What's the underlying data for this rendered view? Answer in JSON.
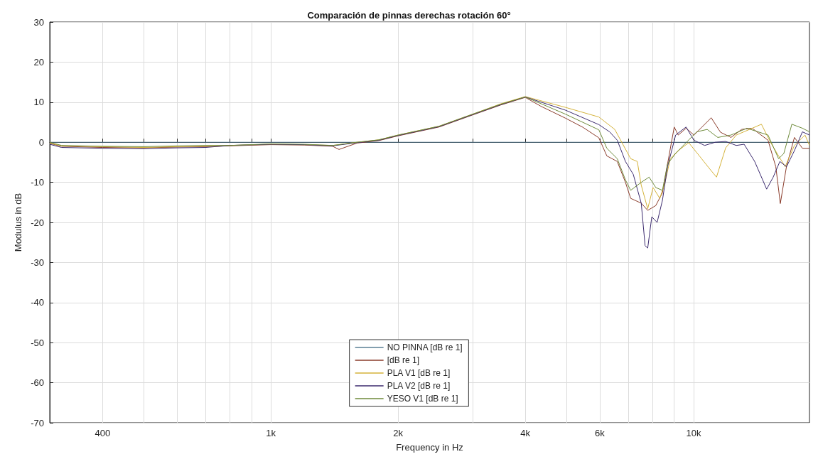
{
  "chart_data": {
    "type": "line",
    "title": "Comparación de pinnas derechas rotación 60°",
    "xlabel": "Frequency in Hz",
    "ylabel": "Modulus in dB",
    "log": "x",
    "grid": true,
    "legend": "bottom",
    "xlim": [
      300,
      18800
    ],
    "ylim": [
      -70,
      30
    ],
    "xticks": [
      400,
      {
        "value": 500,
        "label": null
      },
      {
        "value": 600,
        "label": null
      },
      {
        "value": 700,
        "label": null
      },
      {
        "value": 800,
        "label": null
      },
      {
        "value": 900,
        "label": null
      },
      {
        "value": 1000,
        "label": "1k"
      },
      {
        "value": 2000,
        "label": "2k"
      },
      {
        "value": 3000,
        "label": null
      },
      {
        "value": 4000,
        "label": "4k"
      },
      {
        "value": 5000,
        "label": null
      },
      {
        "value": 6000,
        "label": "6k"
      },
      {
        "value": 7000,
        "label": null
      },
      {
        "value": 8000,
        "label": null
      },
      {
        "value": 9000,
        "label": null
      },
      {
        "value": 10000,
        "label": "10k"
      }
    ],
    "yticks": [
      -70,
      -60,
      -50,
      -40,
      -30,
      -20,
      -10,
      0,
      10,
      20,
      30
    ],
    "series": [
      {
        "name": "NO PINNA [dB re 1]",
        "color": "#5a7f94",
        "x": [
          300,
          18800
        ],
        "values": [
          0,
          0
        ]
      },
      {
        "name": "[dB re 1]",
        "color": "#8a3b2a",
        "x": [
          300,
          320,
          400,
          500,
          600,
          700,
          800,
          1000,
          1200,
          1400,
          1450,
          1600,
          1800,
          2000,
          2500,
          3000,
          3500,
          4000,
          4350,
          4980,
          5480,
          5970,
          6235,
          6600,
          6900,
          7100,
          7520,
          7790,
          8140,
          8440,
          8680,
          9000,
          9200,
          9600,
          10020,
          10470,
          11010,
          11580,
          12260,
          12990,
          13760,
          15000,
          15650,
          16040,
          16590,
          17320,
          18090,
          18800
        ],
        "values": [
          -0.3,
          -1,
          -1.3,
          -1.4,
          -1.2,
          -1.1,
          -0.9,
          -0.6,
          -0.7,
          -1,
          -1.8,
          -0.2,
          0.4,
          1.6,
          3.8,
          6.8,
          9.3,
          11.2,
          9,
          6,
          3.7,
          1.1,
          -3.4,
          -4.8,
          -10,
          -14,
          -15.2,
          -17,
          -15.8,
          -12.6,
          -5.4,
          3.8,
          1.8,
          3.5,
          1.8,
          3.8,
          6.1,
          2.5,
          1.2,
          3.2,
          3.5,
          0.5,
          -6.1,
          -15.3,
          -6,
          1.2,
          -1.5,
          -1.5
        ]
      },
      {
        "name": "PLA V1 [dB re 1]",
        "color": "#d4b23a",
        "x": [
          300,
          320,
          400,
          500,
          600,
          700,
          800,
          1000,
          1200,
          1400,
          1600,
          1800,
          2000,
          2500,
          3000,
          3500,
          4000,
          4980,
          5970,
          6510,
          7100,
          7360,
          7520,
          7790,
          8020,
          8320,
          8560,
          8810,
          9200,
          9740,
          10320,
          10930,
          11330,
          11910,
          12620,
          13560,
          14470,
          15220,
          15890,
          16470,
          17320,
          18350,
          18800
        ],
        "values": [
          -0.2,
          -0.9,
          -1.1,
          -1.3,
          -1.1,
          -1,
          -0.8,
          -0.5,
          -0.6,
          -0.8,
          0,
          0.6,
          1.8,
          4,
          7,
          9.6,
          11.4,
          8.7,
          6.3,
          3.2,
          -4.1,
          -4.8,
          -10.7,
          -16.6,
          -11.3,
          -14,
          -10,
          -4.1,
          -2.1,
          -0.1,
          -3.4,
          -6.7,
          -8.7,
          -1.4,
          1.8,
          3.2,
          4.5,
          -0.1,
          -3.4,
          -6.1,
          -0.8,
          1.8,
          -0.8
        ]
      },
      {
        "name": "PLA V2 [dB re 1]",
        "color": "#3b2a6e",
        "x": [
          300,
          320,
          400,
          500,
          600,
          700,
          800,
          1000,
          1200,
          1400,
          1600,
          1800,
          2000,
          2500,
          3000,
          3500,
          4000,
          4980,
          5970,
          6330,
          6600,
          6900,
          7200,
          7520,
          7680,
          7790,
          7965,
          8200,
          8440,
          8680,
          9070,
          9600,
          10020,
          10620,
          11250,
          11910,
          12620,
          13170,
          13950,
          14890,
          15430,
          16000,
          16590,
          17320,
          18090,
          18800
        ],
        "values": [
          -0.5,
          -1.3,
          -1.5,
          -1.6,
          -1.4,
          -1.3,
          -0.8,
          -0.5,
          -0.6,
          -0.9,
          -0.1,
          0.5,
          1.7,
          3.9,
          6.9,
          9.4,
          11.3,
          8,
          4.4,
          2.6,
          0.5,
          -4.8,
          -8,
          -15.2,
          -25.8,
          -26.4,
          -18.6,
          -20,
          -14.5,
          -6.1,
          1.8,
          3.8,
          0.5,
          -0.8,
          0,
          0.2,
          -0.8,
          -0.5,
          -4.8,
          -11.7,
          -8.7,
          -4.8,
          -6.1,
          -2.1,
          2.6,
          1.8
        ]
      },
      {
        "name": "YESO V1 [dB re 1]",
        "color": "#6e8a3a",
        "x": [
          300,
          320,
          400,
          500,
          600,
          700,
          800,
          1000,
          1200,
          1400,
          1600,
          1800,
          2000,
          2500,
          3000,
          3500,
          4000,
          4980,
          5970,
          6235,
          6600,
          6900,
          7100,
          7520,
          7850,
          8140,
          8440,
          8680,
          9070,
          9600,
          10170,
          10770,
          11410,
          12260,
          13370,
          15000,
          15890,
          16350,
          17080,
          18090,
          18800
        ],
        "values": [
          0,
          -0.8,
          -1,
          -1.1,
          -0.9,
          -0.8,
          -0.8,
          -0.4,
          -0.5,
          -0.8,
          0,
          0.6,
          1.8,
          4,
          7,
          9.5,
          11.3,
          7,
          3.1,
          -1.5,
          -4.1,
          -9.4,
          -12,
          -10,
          -8.7,
          -11.3,
          -12,
          -5.4,
          -2.8,
          -0.1,
          2.6,
          3.2,
          1.2,
          1.8,
          3.5,
          1.8,
          -4.1,
          -2.8,
          4.5,
          3.5,
          2.6
        ]
      }
    ]
  }
}
